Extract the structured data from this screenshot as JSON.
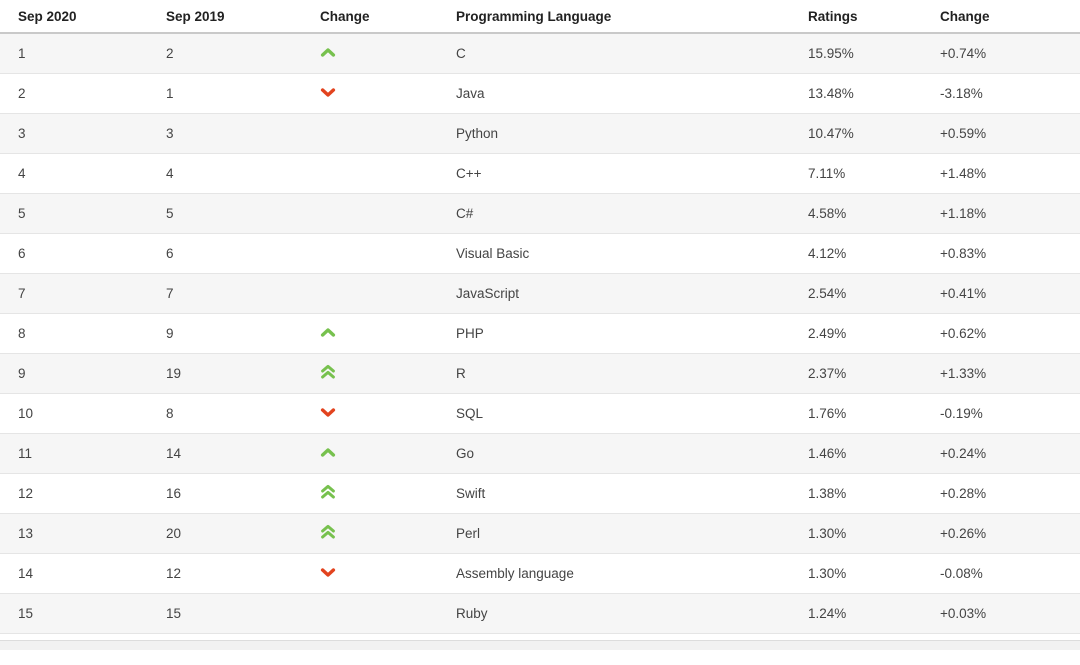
{
  "chart_data": {
    "type": "table",
    "columns": [
      "Sep 2020",
      "Sep 2019",
      "Change",
      "Programming Language",
      "Ratings",
      "Change"
    ],
    "rows": [
      {
        "rank2020": "1",
        "rank2019": "2",
        "change": "up",
        "language": "C",
        "ratings": "15.95%",
        "delta": "+0.74%"
      },
      {
        "rank2020": "2",
        "rank2019": "1",
        "change": "down",
        "language": "Java",
        "ratings": "13.48%",
        "delta": "-3.18%"
      },
      {
        "rank2020": "3",
        "rank2019": "3",
        "change": "none",
        "language": "Python",
        "ratings": "10.47%",
        "delta": "+0.59%"
      },
      {
        "rank2020": "4",
        "rank2019": "4",
        "change": "none",
        "language": "C++",
        "ratings": "7.11%",
        "delta": "+1.48%"
      },
      {
        "rank2020": "5",
        "rank2019": "5",
        "change": "none",
        "language": "C#",
        "ratings": "4.58%",
        "delta": "+1.18%"
      },
      {
        "rank2020": "6",
        "rank2019": "6",
        "change": "none",
        "language": "Visual Basic",
        "ratings": "4.12%",
        "delta": "+0.83%"
      },
      {
        "rank2020": "7",
        "rank2019": "7",
        "change": "none",
        "language": "JavaScript",
        "ratings": "2.54%",
        "delta": "+0.41%"
      },
      {
        "rank2020": "8",
        "rank2019": "9",
        "change": "up",
        "language": "PHP",
        "ratings": "2.49%",
        "delta": "+0.62%"
      },
      {
        "rank2020": "9",
        "rank2019": "19",
        "change": "double-up",
        "language": "R",
        "ratings": "2.37%",
        "delta": "+1.33%"
      },
      {
        "rank2020": "10",
        "rank2019": "8",
        "change": "down",
        "language": "SQL",
        "ratings": "1.76%",
        "delta": "-0.19%"
      },
      {
        "rank2020": "11",
        "rank2019": "14",
        "change": "up",
        "language": "Go",
        "ratings": "1.46%",
        "delta": "+0.24%"
      },
      {
        "rank2020": "12",
        "rank2019": "16",
        "change": "double-up",
        "language": "Swift",
        "ratings": "1.38%",
        "delta": "+0.28%"
      },
      {
        "rank2020": "13",
        "rank2019": "20",
        "change": "double-up",
        "language": "Perl",
        "ratings": "1.30%",
        "delta": "+0.26%"
      },
      {
        "rank2020": "14",
        "rank2019": "12",
        "change": "down",
        "language": "Assembly language",
        "ratings": "1.30%",
        "delta": "-0.08%"
      },
      {
        "rank2020": "15",
        "rank2019": "15",
        "change": "none",
        "language": "Ruby",
        "ratings": "1.24%",
        "delta": "+0.03%"
      }
    ]
  },
  "colors": {
    "up_arrow_green": "#77c14e",
    "down_arrow_red": "#e2431e",
    "row_stripe": "#f6f6f6",
    "header_text": "#222222",
    "body_text": "#444444"
  },
  "icons": {
    "up": "rank-up-arrow-icon",
    "double-up": "rank-double-up-arrow-icon",
    "down": "rank-down-arrow-icon"
  }
}
